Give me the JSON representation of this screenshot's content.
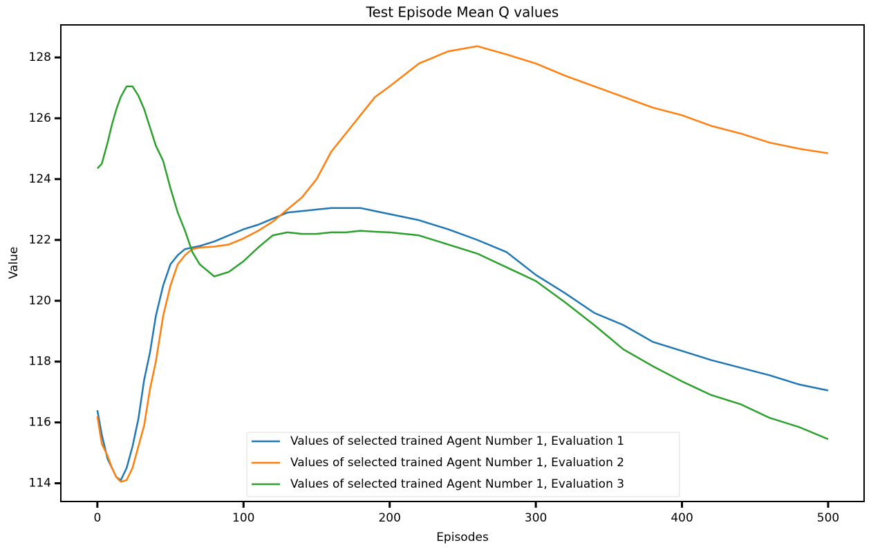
{
  "chart_data": {
    "type": "line",
    "title": "Test Episode Mean Q values",
    "x_label": "Episodes",
    "y_label": "Value",
    "x": [
      0,
      3,
      7,
      10,
      13,
      16,
      20,
      24,
      28,
      32,
      36,
      40,
      45,
      50,
      55,
      60,
      65,
      70,
      80,
      90,
      100,
      110,
      120,
      130,
      140,
      150,
      160,
      170,
      180,
      190,
      200,
      220,
      240,
      260,
      280,
      300,
      320,
      340,
      360,
      380,
      400,
      420,
      440,
      460,
      480,
      500
    ],
    "series": [
      {
        "name": "Values of selected trained Agent Number 1, Evaluation 1",
        "color": "#1f77b4",
        "values": [
          116.4,
          115.6,
          114.8,
          114.5,
          114.2,
          114.1,
          114.5,
          115.2,
          116.1,
          117.4,
          118.3,
          119.5,
          120.5,
          121.2,
          121.5,
          121.7,
          121.75,
          121.8,
          121.95,
          122.15,
          122.35,
          122.5,
          122.7,
          122.9,
          122.95,
          123.0,
          123.05,
          123.05,
          123.05,
          122.95,
          122.85,
          122.65,
          122.35,
          122.0,
          121.6,
          120.85,
          120.25,
          119.6,
          119.2,
          118.65,
          118.35,
          118.05,
          117.8,
          117.55,
          117.25,
          117.05
        ]
      },
      {
        "name": "Values of selected trained Agent Number 1, Evaluation 2",
        "color": "#ff7f0e",
        "values": [
          116.2,
          115.3,
          114.9,
          114.5,
          114.2,
          114.05,
          114.1,
          114.5,
          115.2,
          115.9,
          117.1,
          118.0,
          119.5,
          120.5,
          121.2,
          121.5,
          121.7,
          121.75,
          121.78,
          121.85,
          122.05,
          122.3,
          122.6,
          123.0,
          123.4,
          124.0,
          124.9,
          125.5,
          126.1,
          126.7,
          127.05,
          127.8,
          128.2,
          128.37,
          128.1,
          127.8,
          127.4,
          127.05,
          126.7,
          126.35,
          126.1,
          125.75,
          125.5,
          125.2,
          125.0,
          124.85
        ]
      },
      {
        "name": "Values of selected trained Agent Number 1, Evaluation 3",
        "color": "#2ca02c",
        "values": [
          124.35,
          124.5,
          125.2,
          125.8,
          126.3,
          126.7,
          127.05,
          127.05,
          126.75,
          126.3,
          125.7,
          125.1,
          124.6,
          123.7,
          122.9,
          122.3,
          121.6,
          121.2,
          120.8,
          120.95,
          121.3,
          121.75,
          122.15,
          122.25,
          122.2,
          122.2,
          122.25,
          122.25,
          122.3,
          122.27,
          122.25,
          122.15,
          121.85,
          121.55,
          121.1,
          120.65,
          119.95,
          119.2,
          118.4,
          117.85,
          117.35,
          116.9,
          116.6,
          116.15,
          115.85,
          115.45
        ]
      }
    ],
    "xlim": [
      -25,
      524.6
    ],
    "ylim": [
      113.4,
      129.07
    ],
    "xticks": [
      0,
      100,
      200,
      300,
      400,
      500
    ],
    "yticks": [
      114,
      116,
      118,
      120,
      122,
      124,
      126,
      128
    ],
    "legend": "lower center"
  }
}
